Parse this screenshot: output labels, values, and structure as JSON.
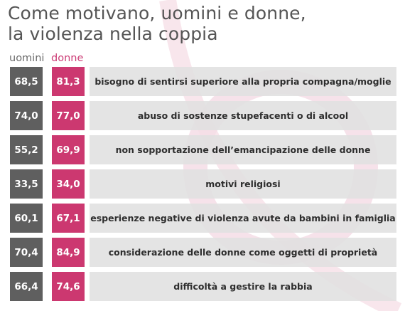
{
  "colors": {
    "men": "#5f5f5f",
    "women": "#cc3870",
    "label_bg": "#e0e0e0",
    "title": "#555555",
    "decoration": "#f5dde6"
  },
  "title_lines": [
    "Come motivano, uomini e donne,",
    "la violenza nella coppia"
  ],
  "chart_data": {
    "type": "table",
    "title": "Come motivano, uomini e donne, la violenza nella coppia",
    "series": [
      {
        "name": "uomini",
        "values": [
          68.5,
          74.0,
          55.2,
          33.5,
          60.1,
          70.4,
          66.4
        ]
      },
      {
        "name": "donne",
        "values": [
          81.3,
          77.0,
          69.9,
          34.0,
          67.1,
          84.9,
          74.6
        ]
      }
    ],
    "rows": [
      {
        "men": "68,5",
        "women": "81,3",
        "label": "bisogno di sentirsi superiore alla propria compagna/moglie"
      },
      {
        "men": "74,0",
        "women": "77,0",
        "label": "abuso di sostenze stupefacenti o di alcool"
      },
      {
        "men": "55,2",
        "women": "69,9",
        "label": "non sopportazione dell’emancipazione delle donne"
      },
      {
        "men": "33,5",
        "women": "34,0",
        "label": "motivi religiosi"
      },
      {
        "men": "60,1",
        "women": "67,1",
        "label": "esperienze negative di violenza avute da bambini in famiglia"
      },
      {
        "men": "70,4",
        "women": "84,9",
        "label": "considerazione delle donne come oggetti di proprietà"
      },
      {
        "men": "66,4",
        "women": "74,6",
        "label": "difficoltà a gestire la rabbia"
      }
    ]
  }
}
